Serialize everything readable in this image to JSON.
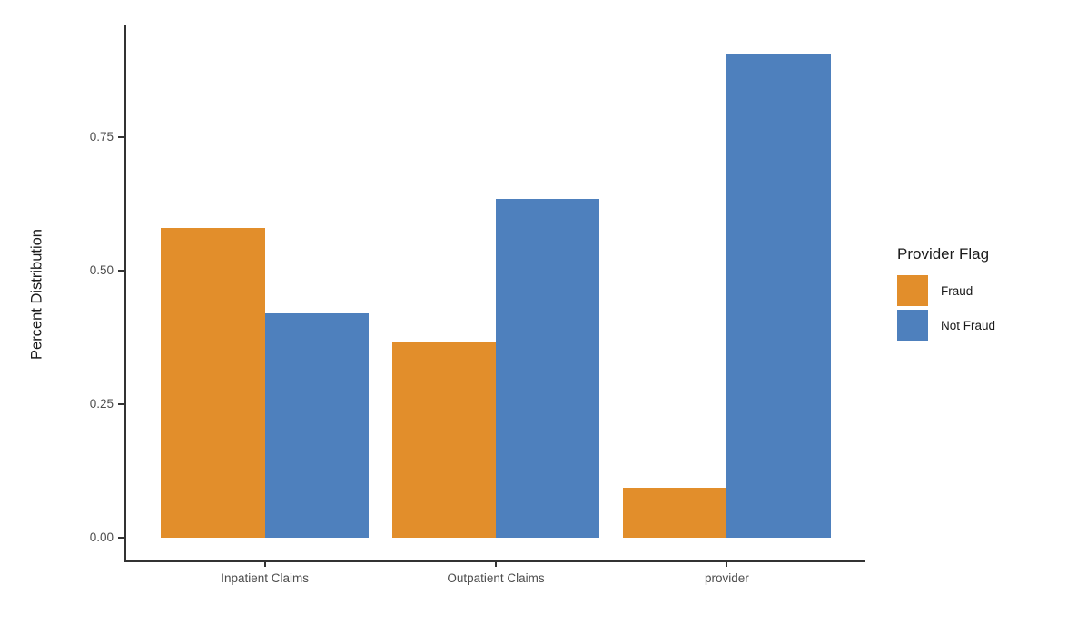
{
  "chart_data": {
    "type": "bar",
    "title": "",
    "xlabel": "",
    "ylabel": "Percent Distribution",
    "categories": [
      "Inpatient Claims",
      "Outpatient Claims",
      "provider"
    ],
    "series": [
      {
        "name": "Fraud",
        "color": "#E28E2B",
        "values": [
          0.58,
          0.366,
          0.094
        ]
      },
      {
        "name": "Not Fraud",
        "color": "#4E80BD",
        "values": [
          0.42,
          0.634,
          0.906
        ]
      }
    ],
    "legend": {
      "title": "Provider Flag",
      "position": "right"
    },
    "yticks": [
      0,
      0.25,
      0.5,
      0.75
    ],
    "ytick_labels": [
      "0.00",
      "0.25",
      "0.50",
      "0.75"
    ],
    "ylim": [
      0,
      0.96
    ],
    "grid": false,
    "bar_layout": "grouped"
  }
}
